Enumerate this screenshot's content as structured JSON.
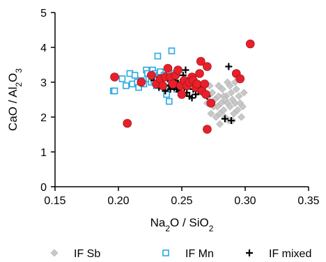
{
  "chart_data": {
    "type": "scatter",
    "title": "",
    "xlabel": {
      "parts": [
        [
          "Na",
          ""
        ],
        [
          "2",
          "sub"
        ],
        [
          "O / SiO",
          ""
        ],
        [
          "2",
          "sub"
        ]
      ]
    },
    "ylabel": {
      "parts": [
        [
          "CaO / Al",
          ""
        ],
        [
          "2",
          "sub"
        ],
        [
          "O",
          ""
        ],
        [
          "3",
          "sub"
        ]
      ]
    },
    "xlim": [
      0.15,
      0.35
    ],
    "ylim": [
      0,
      5
    ],
    "xticks": [
      "0.15",
      "0.20",
      "0.25",
      "0.30",
      "0.35"
    ],
    "yticks": [
      "0",
      "1",
      "2",
      "3",
      "4",
      "5"
    ],
    "grid": false,
    "legend_position": "bottom",
    "series": [
      {
        "name": "IF Sb",
        "marker": "diamond",
        "color": "#c8c8c8",
        "points": [
          [
            0.272,
            2.9
          ],
          [
            0.274,
            2.7
          ],
          [
            0.276,
            2.5
          ],
          [
            0.278,
            2.3
          ],
          [
            0.279,
            2.6
          ],
          [
            0.28,
            2.1
          ],
          [
            0.281,
            2.4
          ],
          [
            0.282,
            2.8
          ],
          [
            0.283,
            2.2
          ],
          [
            0.284,
            2.0
          ],
          [
            0.285,
            2.6
          ],
          [
            0.286,
            2.4
          ],
          [
            0.286,
            3.0
          ],
          [
            0.287,
            1.9
          ],
          [
            0.288,
            2.3
          ],
          [
            0.289,
            2.7
          ],
          [
            0.29,
            2.5
          ],
          [
            0.291,
            2.1
          ],
          [
            0.292,
            2.4
          ],
          [
            0.293,
            2.8
          ],
          [
            0.294,
            2.2
          ],
          [
            0.295,
            2.6
          ],
          [
            0.296,
            2.4
          ],
          [
            0.297,
            2.0
          ],
          [
            0.298,
            2.3
          ],
          [
            0.277,
            2.0
          ],
          [
            0.28,
            1.8
          ],
          [
            0.283,
            2.6
          ],
          [
            0.288,
            2.9
          ],
          [
            0.275,
            2.3
          ],
          [
            0.271,
            2.6
          ],
          [
            0.273,
            2.1
          ],
          [
            0.29,
            1.9
          ],
          [
            0.284,
            2.5
          ],
          [
            0.279,
            2.9
          ],
          [
            0.292,
            3.0
          ],
          [
            0.299,
            2.7
          ],
          [
            0.27,
            2.4
          ]
        ]
      },
      {
        "name": "IF Mn",
        "marker": "square",
        "color": "#29a8e0",
        "points": [
          [
            0.196,
            2.75
          ],
          [
            0.197,
            2.75
          ],
          [
            0.203,
            3.1
          ],
          [
            0.206,
            2.9
          ],
          [
            0.209,
            3.25
          ],
          [
            0.211,
            2.95
          ],
          [
            0.213,
            3.2
          ],
          [
            0.215,
            3.0
          ],
          [
            0.216,
            2.85
          ],
          [
            0.218,
            3.05
          ],
          [
            0.22,
            2.95
          ],
          [
            0.222,
            3.35
          ],
          [
            0.223,
            3.25
          ],
          [
            0.224,
            3.1
          ],
          [
            0.226,
            3.0
          ],
          [
            0.227,
            3.35
          ],
          [
            0.228,
            3.05
          ],
          [
            0.229,
            3.25
          ],
          [
            0.23,
            2.9
          ],
          [
            0.231,
            3.75
          ],
          [
            0.232,
            3.2
          ],
          [
            0.233,
            3.3
          ],
          [
            0.234,
            3.05
          ],
          [
            0.236,
            3.2
          ],
          [
            0.237,
            2.85
          ],
          [
            0.238,
            2.65
          ],
          [
            0.239,
            3.15
          ],
          [
            0.24,
            2.45
          ],
          [
            0.242,
            3.9
          ],
          [
            0.243,
            3.0
          ],
          [
            0.244,
            3.25
          ],
          [
            0.246,
            2.8
          ]
        ]
      },
      {
        "name": "IF mixed",
        "marker": "cross",
        "color": "#000000",
        "points": [
          [
            0.228,
            3.05
          ],
          [
            0.232,
            2.85
          ],
          [
            0.235,
            2.95
          ],
          [
            0.237,
            2.75
          ],
          [
            0.239,
            3.1
          ],
          [
            0.24,
            2.9
          ],
          [
            0.241,
            2.8
          ],
          [
            0.242,
            2.95
          ],
          [
            0.244,
            2.85
          ],
          [
            0.245,
            3.05
          ],
          [
            0.246,
            2.8
          ],
          [
            0.247,
            2.95
          ],
          [
            0.248,
            2.75
          ],
          [
            0.249,
            3.0
          ],
          [
            0.25,
            2.9
          ],
          [
            0.251,
            3.2
          ],
          [
            0.252,
            2.85
          ],
          [
            0.253,
            3.35
          ],
          [
            0.254,
            2.7
          ],
          [
            0.255,
            2.95
          ],
          [
            0.256,
            2.6
          ],
          [
            0.257,
            3.0
          ],
          [
            0.258,
            2.55
          ],
          [
            0.259,
            2.8
          ],
          [
            0.261,
            2.65
          ],
          [
            0.262,
            2.9
          ],
          [
            0.263,
            2.75
          ],
          [
            0.265,
            2.85
          ],
          [
            0.267,
            2.7
          ],
          [
            0.27,
            2.6
          ],
          [
            0.287,
            3.45
          ],
          [
            0.284,
            1.95
          ],
          [
            0.289,
            1.9
          ]
        ]
      },
      {
        "name": "",
        "marker": "circle",
        "color": "#e8202a",
        "points": [
          [
            0.197,
            3.15
          ],
          [
            0.207,
            1.82
          ],
          [
            0.218,
            3.0
          ],
          [
            0.226,
            3.2
          ],
          [
            0.23,
            2.95
          ],
          [
            0.233,
            3.1
          ],
          [
            0.235,
            2.9
          ],
          [
            0.237,
            3.15
          ],
          [
            0.239,
            3.4
          ],
          [
            0.241,
            3.15
          ],
          [
            0.243,
            2.95
          ],
          [
            0.245,
            3.2
          ],
          [
            0.247,
            3.35
          ],
          [
            0.249,
            2.9
          ],
          [
            0.252,
            3.05
          ],
          [
            0.254,
            2.9
          ],
          [
            0.256,
            3.0
          ],
          [
            0.258,
            3.15
          ],
          [
            0.259,
            3.05
          ],
          [
            0.261,
            2.85
          ],
          [
            0.262,
            2.95
          ],
          [
            0.264,
            3.25
          ],
          [
            0.265,
            3.6
          ],
          [
            0.266,
            2.75
          ],
          [
            0.268,
            2.95
          ],
          [
            0.269,
            2.65
          ],
          [
            0.27,
            3.45
          ],
          [
            0.273,
            2.4
          ],
          [
            0.27,
            1.65
          ],
          [
            0.293,
            3.25
          ],
          [
            0.296,
            3.1
          ],
          [
            0.304,
            4.1
          ],
          [
            0.25,
            2.65
          ]
        ]
      }
    ],
    "legend": [
      {
        "label": "IF Sb",
        "marker": "diamond",
        "color": "#c8c8c8"
      },
      {
        "label": "IF Mn",
        "marker": "square",
        "color": "#29a8e0"
      },
      {
        "label": "IF mixed",
        "marker": "cross",
        "color": "#000000"
      }
    ]
  }
}
